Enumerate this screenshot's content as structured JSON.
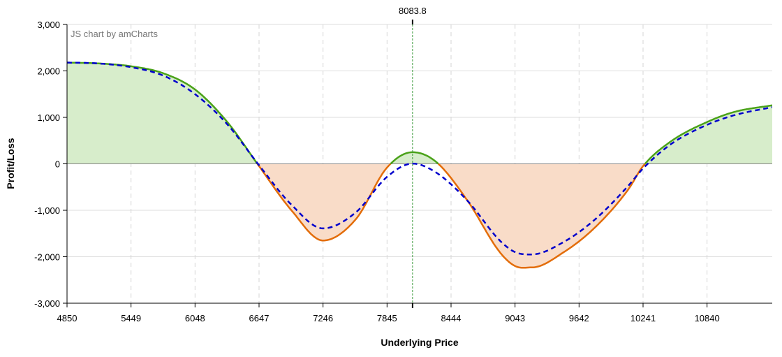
{
  "chart_data": {
    "type": "line",
    "xlabel": "Underlying Price",
    "ylabel": "Profit/Loss",
    "credit": "JS chart by amCharts",
    "xlim": [
      4850,
      11450
    ],
    "ylim": [
      -3000,
      3000
    ],
    "xticks": [
      4850,
      5449,
      6048,
      6647,
      7246,
      7845,
      8444,
      9043,
      9642,
      10241,
      10840
    ],
    "yticks": [
      -3000,
      -2000,
      -1000,
      0,
      1000,
      2000,
      3000
    ],
    "ytick_labels": [
      "-3,000",
      "-2,000",
      "-1,000",
      "0",
      "1,000",
      "2,000",
      "3,000"
    ],
    "grid": true,
    "current_price": {
      "value": 8083.8,
      "label": "8083.8"
    },
    "colors": {
      "profit_line": "#4aa219",
      "loss_line": "#e36d0a",
      "profit_fill": "#d7edcb",
      "loss_fill": "#f9dcc8",
      "t0_line": "#0000cc",
      "marker_line": "#3a9a3a",
      "zero_line": "#888888",
      "grid": "#dddddd"
    },
    "series": [
      {
        "style": "solid",
        "x": [
          4850,
          5150,
          5449,
          5750,
          6048,
          6350,
          6647,
          6950,
          7246,
          7550,
          7845,
          8083.8,
          8300,
          8600,
          8900,
          9043,
          9200,
          9500,
          9800,
          10100,
          10241,
          10500,
          10840,
          11100,
          11450
        ],
        "y": [
          2180,
          2160,
          2100,
          1950,
          1600,
          900,
          -50,
          -1000,
          -1650,
          -1200,
          -80,
          250,
          50,
          -800,
          -1900,
          -2200,
          -2230,
          -1900,
          -1350,
          -560,
          -50,
          480,
          900,
          1120,
          1260
        ]
      },
      {
        "style": "dashed",
        "x": [
          4850,
          5150,
          5449,
          5750,
          6048,
          6350,
          6647,
          6950,
          7246,
          7550,
          7845,
          8083.8,
          8300,
          8600,
          8900,
          9043,
          9200,
          9500,
          9800,
          10100,
          10241,
          10500,
          10840,
          11100,
          11450
        ],
        "y": [
          2180,
          2160,
          2080,
          1900,
          1500,
          850,
          -30,
          -880,
          -1390,
          -1050,
          -280,
          5,
          -180,
          -800,
          -1650,
          -1900,
          -1950,
          -1680,
          -1180,
          -480,
          -100,
          420,
          840,
          1050,
          1220
        ]
      }
    ]
  }
}
